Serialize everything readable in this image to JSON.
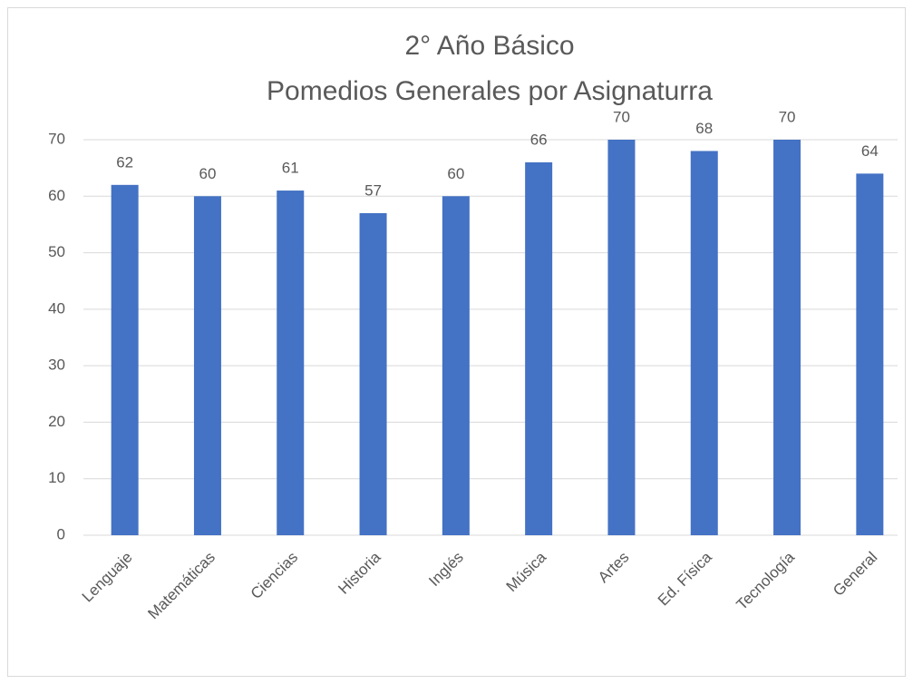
{
  "chart_data": {
    "type": "bar",
    "title": "2° Año Básico",
    "subtitle": "Pomedios Generales por Asignaturra",
    "categories": [
      "Lenguaje",
      "Matemáticas",
      "Ciencias",
      "Historia",
      "Inglés",
      "Música",
      "Artes",
      "Ed. Física",
      "Tecnología",
      "General"
    ],
    "values": [
      62,
      60,
      61,
      57,
      60,
      66,
      70,
      68,
      70,
      64
    ],
    "color": "#4472c4",
    "ylim": [
      0,
      70
    ],
    "yticks": [
      0,
      10,
      20,
      30,
      40,
      50,
      60,
      70
    ],
    "grid": true
  }
}
